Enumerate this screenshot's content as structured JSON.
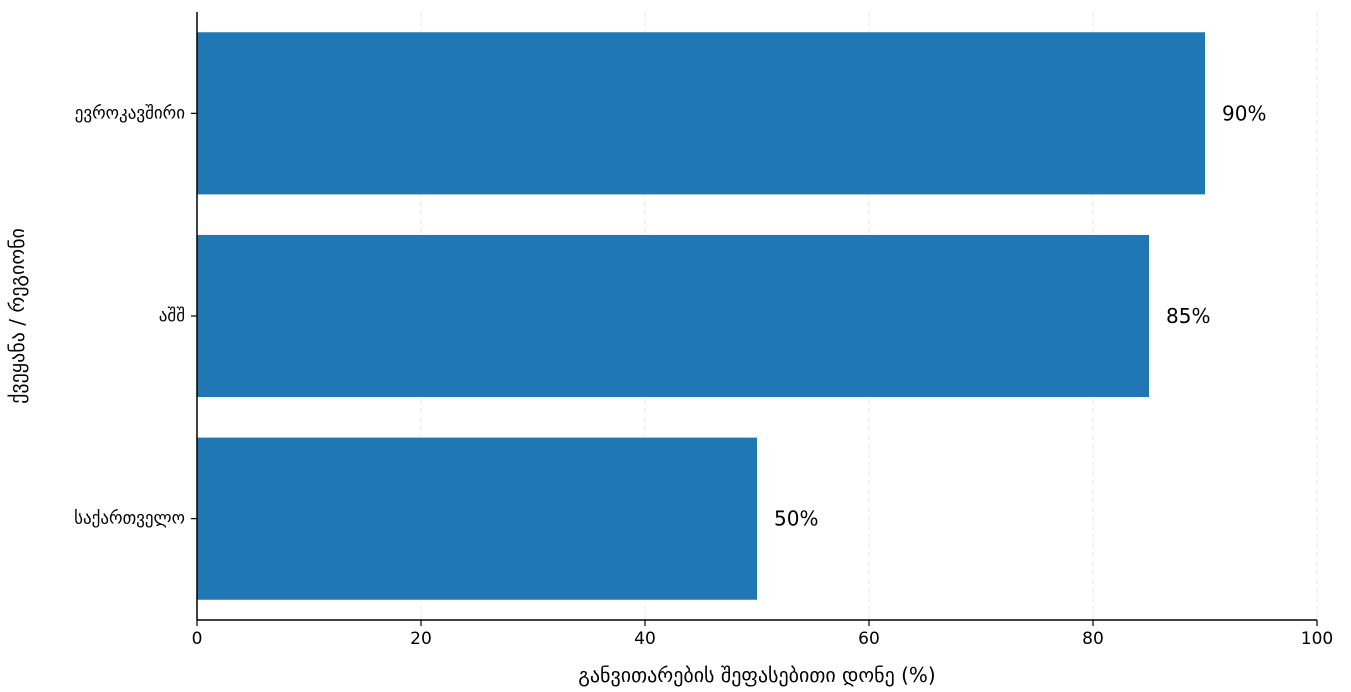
{
  "chart_data": {
    "type": "bar",
    "orientation": "horizontal",
    "title": "",
    "xlabel": "განვითარების შეფასებითი დონე (%)",
    "ylabel": "ქვეყანა / რეგიონი",
    "categories": [
      "ევროკავშირი",
      "აშშ",
      "საქართველო"
    ],
    "values": [
      90,
      85,
      50
    ],
    "value_labels": [
      "90%",
      "85%",
      "50%"
    ],
    "xlim": [
      0,
      100
    ],
    "xticks": [
      0,
      20,
      40,
      60,
      80,
      100
    ],
    "xtick_labels": [
      "0",
      "20",
      "40",
      "60",
      "80",
      "100"
    ],
    "grid": "x-axis dashed",
    "legend": "none",
    "bar_color": "#1f77b4",
    "grid_color": "#e6e6e6"
  }
}
